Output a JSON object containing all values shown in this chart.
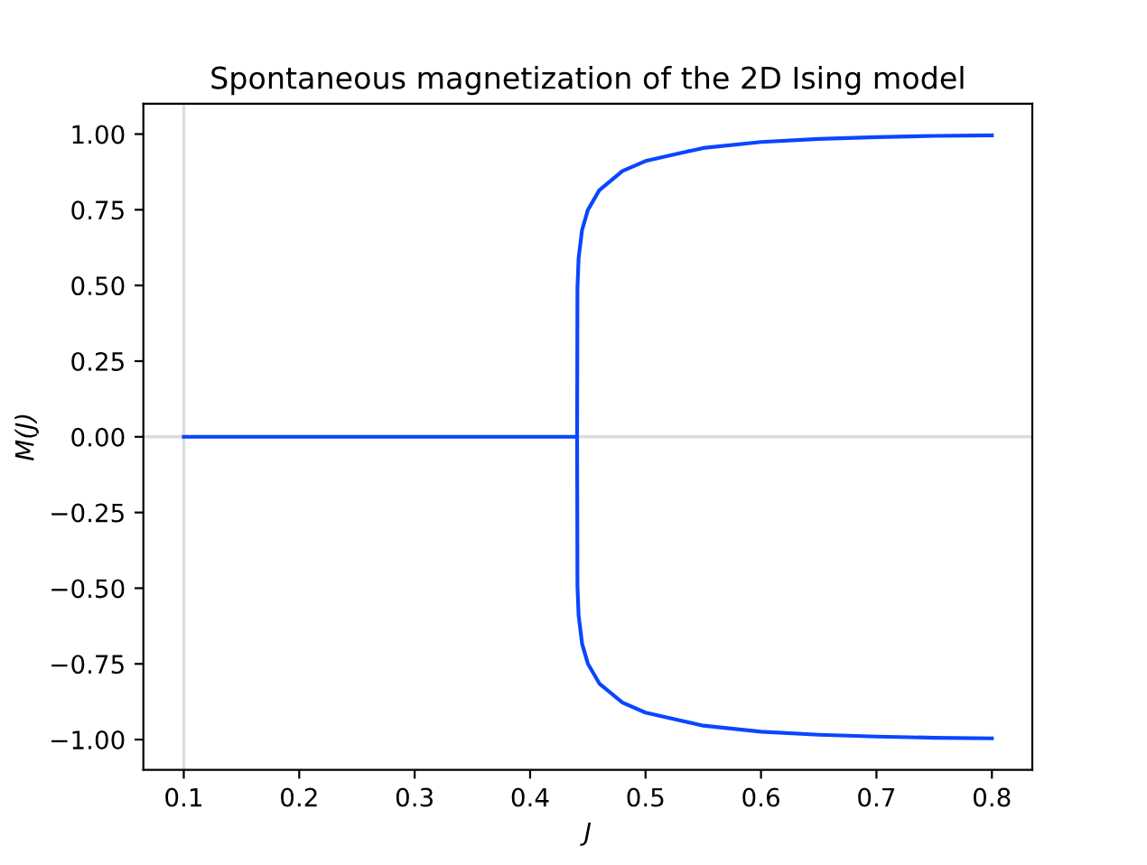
{
  "chart_data": {
    "type": "line",
    "title": "Spontaneous magnetization of the 2D Ising model",
    "xlabel": "J",
    "ylabel": "M(J)",
    "series": [
      {
        "color": "#0a46ff",
        "x": [
          0.1,
          0.2,
          0.3,
          0.4,
          0.4407,
          0.441,
          0.442,
          0.445,
          0.45,
          0.46,
          0.48,
          0.5,
          0.55,
          0.6,
          0.65,
          0.7,
          0.75,
          0.8
        ],
        "values": [
          0,
          0,
          0,
          0,
          0,
          0.491,
          0.59,
          0.683,
          0.749,
          0.815,
          0.878,
          0.911,
          0.954,
          0.974,
          0.984,
          0.99,
          0.994,
          0.996
        ]
      },
      {
        "color": "#0a46ff",
        "x": [
          0.4407,
          0.441,
          0.442,
          0.445,
          0.45,
          0.46,
          0.48,
          0.5,
          0.55,
          0.6,
          0.65,
          0.7,
          0.75,
          0.8
        ],
        "values": [
          0,
          -0.491,
          -0.59,
          -0.683,
          -0.749,
          -0.815,
          -0.878,
          -0.911,
          -0.954,
          -0.974,
          -0.984,
          -0.99,
          -0.994,
          -0.996
        ]
      }
    ],
    "ref_lines": [
      {
        "axis": "x",
        "value": 0.1,
        "color": "#dcdcdc"
      },
      {
        "axis": "y",
        "value": 0,
        "color": "#dcdcdc"
      }
    ],
    "xlim": [
      0.065,
      0.835
    ],
    "ylim": [
      -1.1,
      1.1
    ],
    "xticks": [
      {
        "value": 0.1,
        "label": "0.1"
      },
      {
        "value": 0.2,
        "label": "0.2"
      },
      {
        "value": 0.3,
        "label": "0.3"
      },
      {
        "value": 0.4,
        "label": "0.4"
      },
      {
        "value": 0.5,
        "label": "0.5"
      },
      {
        "value": 0.6,
        "label": "0.6"
      },
      {
        "value": 0.7,
        "label": "0.7"
      },
      {
        "value": 0.8,
        "label": "0.8"
      }
    ],
    "yticks": [
      {
        "value": 1,
        "label": "1.00"
      },
      {
        "value": 0.75,
        "label": "0.75"
      },
      {
        "value": 0.5,
        "label": "0.50"
      },
      {
        "value": 0.25,
        "label": "0.25"
      },
      {
        "value": 0,
        "label": "0.00"
      },
      {
        "value": -0.25,
        "label": "−0.25"
      },
      {
        "value": -0.5,
        "label": "−0.50"
      },
      {
        "value": -0.75,
        "label": "−0.75"
      },
      {
        "value": -1,
        "label": "−1.00"
      }
    ],
    "grid": false,
    "legend": false
  }
}
